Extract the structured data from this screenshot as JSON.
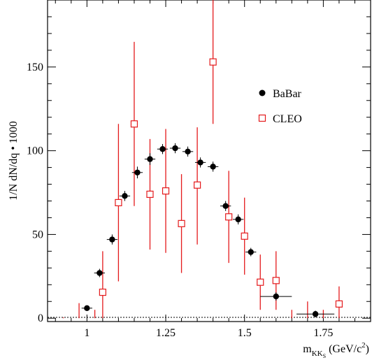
{
  "chart_data": {
    "type": "scatter",
    "title": "",
    "xlabel": "m_KKS (GeV/c²)",
    "xlabel_parts": {
      "main": "m",
      "sub": "KK",
      "subsub": "S",
      "units": "(GeV/c",
      "sup": "2",
      "close": ")"
    },
    "ylabel": "1/N dN/dq • 1000",
    "xlim": [
      0.875,
      1.9
    ],
    "ylim": [
      -2,
      190
    ],
    "x_ticks": [
      1,
      1.25,
      1.5,
      1.75
    ],
    "x_tick_labels": [
      "1",
      "1.25",
      "1.5",
      "1.75"
    ],
    "y_ticks": [
      0,
      50,
      100,
      150
    ],
    "y_tick_labels": [
      "0",
      "50",
      "100",
      "150"
    ],
    "reference_line": {
      "y": 0.5,
      "style": "dotted"
    },
    "legend_placement": "right",
    "series": [
      {
        "name": "BaBar",
        "marker": "filled-circle",
        "color": "#000000",
        "points": [
          {
            "x": 1.0,
            "y": 6,
            "xerr": 0.017,
            "yerr": 1.5
          },
          {
            "x": 1.04,
            "y": 27,
            "xerr": 0.017,
            "yerr": 2.5
          },
          {
            "x": 1.08,
            "y": 47,
            "xerr": 0.017,
            "yerr": 3
          },
          {
            "x": 1.12,
            "y": 73,
            "xerr": 0.017,
            "yerr": 3
          },
          {
            "x": 1.16,
            "y": 87,
            "xerr": 0.017,
            "yerr": 3.5
          },
          {
            "x": 1.2,
            "y": 95,
            "xerr": 0.017,
            "yerr": 3.5
          },
          {
            "x": 1.24,
            "y": 101,
            "xerr": 0.017,
            "yerr": 3
          },
          {
            "x": 1.28,
            "y": 101.5,
            "xerr": 0.017,
            "yerr": 3
          },
          {
            "x": 1.32,
            "y": 99.5,
            "xerr": 0.017,
            "yerr": 3
          },
          {
            "x": 1.36,
            "y": 93,
            "xerr": 0.017,
            "yerr": 3
          },
          {
            "x": 1.4,
            "y": 90.5,
            "xerr": 0.017,
            "yerr": 3
          },
          {
            "x": 1.44,
            "y": 67,
            "xerr": 0.017,
            "yerr": 3
          },
          {
            "x": 1.48,
            "y": 59,
            "xerr": 0.017,
            "yerr": 3
          },
          {
            "x": 1.52,
            "y": 39.5,
            "xerr": 0.017,
            "yerr": 2.5
          },
          {
            "x": 1.6,
            "y": 13,
            "xerr": 0.05,
            "yerr": 2.5
          },
          {
            "x": 1.725,
            "y": 2.5,
            "xerr": 0.06,
            "yerr": 2
          }
        ]
      },
      {
        "name": "CLEO",
        "marker": "open-square",
        "color": "#e41a1c",
        "points": [
          {
            "x": 0.925,
            "y": 0,
            "ylo": 0,
            "yhi": 0.5
          },
          {
            "x": 0.975,
            "y": 0,
            "ylo": 0,
            "yhi": 9
          },
          {
            "x": 1.025,
            "y": 0,
            "ylo": 0,
            "yhi": 5
          },
          {
            "x": 1.05,
            "y": 15.5,
            "ylo": 0,
            "yhi": 40
          },
          {
            "x": 1.1,
            "y": 69,
            "ylo": 22,
            "yhi": 116
          },
          {
            "x": 1.15,
            "y": 116,
            "ylo": 67,
            "yhi": 165
          },
          {
            "x": 1.2,
            "y": 74,
            "ylo": 41,
            "yhi": 107
          },
          {
            "x": 1.25,
            "y": 76,
            "ylo": 39,
            "yhi": 113
          },
          {
            "x": 1.3,
            "y": 56.5,
            "ylo": 27,
            "yhi": 86
          },
          {
            "x": 1.35,
            "y": 79.5,
            "ylo": 44,
            "yhi": 114
          },
          {
            "x": 1.4,
            "y": 153,
            "ylo": 116,
            "yhi": 190
          },
          {
            "x": 1.45,
            "y": 60.5,
            "ylo": 33,
            "yhi": 88
          },
          {
            "x": 1.5,
            "y": 49,
            "ylo": 26,
            "yhi": 72
          },
          {
            "x": 1.55,
            "y": 21.5,
            "ylo": 5,
            "yhi": 38
          },
          {
            "x": 1.6,
            "y": 22.5,
            "ylo": 5,
            "yhi": 40
          },
          {
            "x": 1.65,
            "y": 0,
            "ylo": 0,
            "yhi": 5
          },
          {
            "x": 1.7,
            "y": 0,
            "ylo": 0,
            "yhi": 10
          },
          {
            "x": 1.75,
            "y": 0,
            "ylo": 0,
            "yhi": 5
          },
          {
            "x": 1.8,
            "y": 8.5,
            "ylo": 0,
            "yhi": 19
          }
        ]
      }
    ]
  }
}
